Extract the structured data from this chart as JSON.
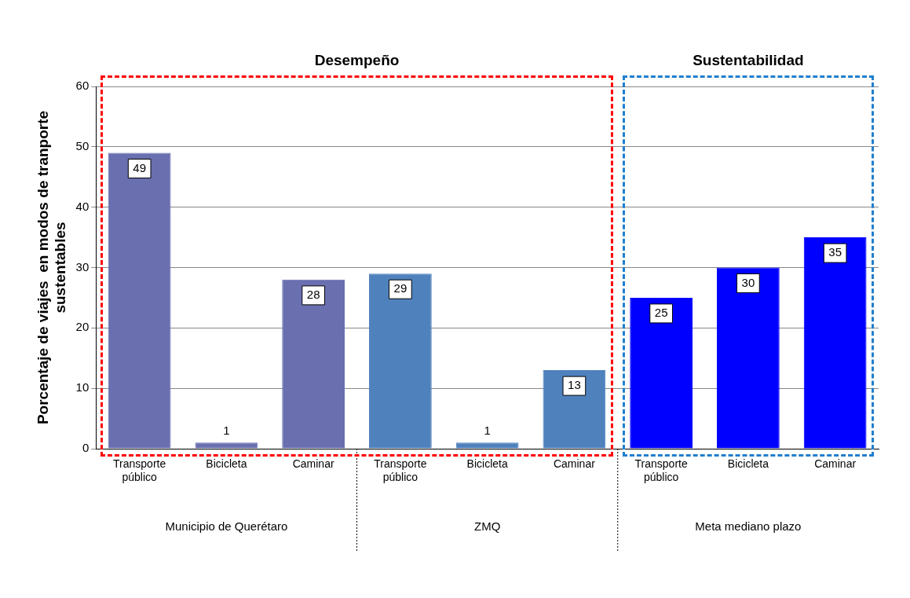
{
  "chart_data": {
    "type": "bar",
    "ylabel": "Porcentaje de viajes  en modos de tranporte sustentables",
    "categories": [
      "Transporte público",
      "Bicicleta",
      "Caminar",
      "Transporte público",
      "Bicicleta",
      "Caminar",
      "Transporte público",
      "Bicicleta",
      "Caminar"
    ],
    "values": [
      49,
      1,
      28,
      29,
      1,
      13,
      25,
      30,
      35
    ],
    "colors": [
      "#6a6fb0",
      "#6a6fb0",
      "#6a6fb0",
      "#4f81bd",
      "#4f81bd",
      "#4f81bd",
      "#0000ff",
      "#0000ff",
      "#0000ff"
    ],
    "ylim": [
      0,
      60
    ],
    "yticks": [
      0,
      10,
      20,
      30,
      40,
      50,
      60
    ],
    "grid": "y",
    "data_labels": true,
    "legend": false,
    "annotations": [
      "Desempeño",
      "Sustentabilidad",
      "Municipio de Querétaro",
      "ZMQ",
      "Meta mediano plazo"
    ]
  }
}
